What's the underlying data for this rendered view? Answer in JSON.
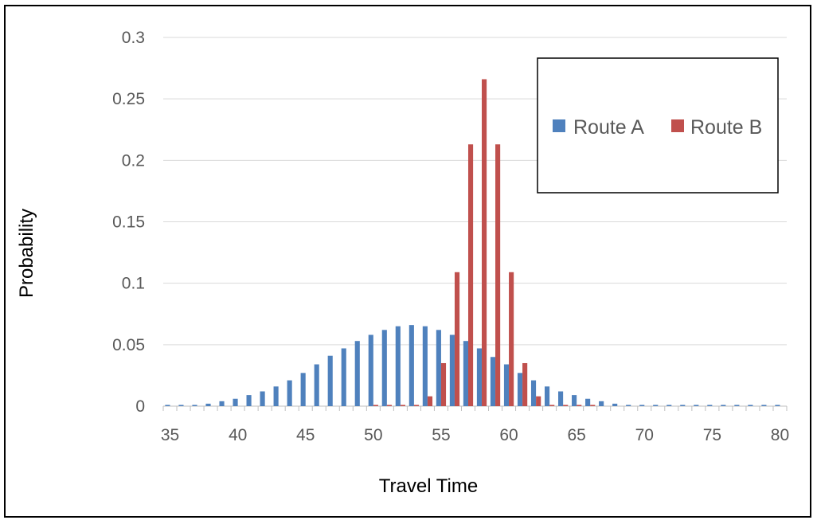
{
  "chart_data": {
    "type": "bar",
    "xlabel": "Travel Time",
    "ylabel": "Probability",
    "xlim": [
      35,
      80
    ],
    "ylim": [
      0,
      0.3
    ],
    "x_ticks": [
      "35",
      "40",
      "45",
      "50",
      "55",
      "60",
      "65",
      "70",
      "75",
      "80"
    ],
    "y_ticks": [
      "0",
      "0.05",
      "0.1",
      "0.15",
      "0.2",
      "0.25",
      "0.3"
    ],
    "grid": true,
    "legend_position": "top-right",
    "x": [
      35,
      36,
      37,
      38,
      39,
      40,
      41,
      42,
      43,
      44,
      45,
      46,
      47,
      48,
      49,
      50,
      51,
      52,
      53,
      54,
      55,
      56,
      57,
      58,
      59,
      60,
      61,
      62,
      63,
      64,
      65,
      66,
      67,
      68,
      69,
      70,
      71,
      72,
      73,
      74,
      75,
      76,
      77,
      78,
      79,
      80
    ],
    "series": [
      {
        "name": "Route A",
        "color": "#4f81bd",
        "values": [
          0.001,
          0.001,
          0.001,
          0.002,
          0.004,
          0.006,
          0.009,
          0.012,
          0.016,
          0.021,
          0.027,
          0.034,
          0.041,
          0.047,
          0.053,
          0.058,
          0.062,
          0.065,
          0.066,
          0.065,
          0.062,
          0.058,
          0.053,
          0.047,
          0.04,
          0.034,
          0.027,
          0.021,
          0.016,
          0.012,
          0.009,
          0.006,
          0.004,
          0.002,
          0.001,
          0.001,
          0.001,
          0.001,
          0.001,
          0.001,
          0.001,
          0.001,
          0.001,
          0.001,
          0.001,
          0.001
        ]
      },
      {
        "name": "Route B",
        "color": "#c0504d",
        "values": [
          0,
          0,
          0,
          0,
          0,
          0,
          0,
          0,
          0,
          0,
          0,
          0,
          0,
          0,
          0,
          0.001,
          0.001,
          0.001,
          0.001,
          0.008,
          0.035,
          0.109,
          0.213,
          0.266,
          0.213,
          0.109,
          0.035,
          0.008,
          0.001,
          0.001,
          0.001,
          0.001,
          0,
          0,
          0,
          0,
          0,
          0,
          0,
          0,
          0,
          0,
          0,
          0,
          0,
          0
        ]
      }
    ]
  }
}
